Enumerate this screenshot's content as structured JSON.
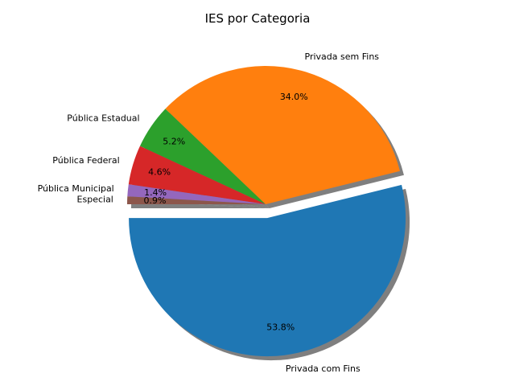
{
  "chart_data": {
    "type": "pie",
    "title": "IES por Categoria",
    "start_angle_deg": 180,
    "direction": "counterclockwise",
    "shadow": true,
    "exploded": [
      "Privada com Fins"
    ],
    "slices": [
      {
        "label": "Privada com Fins",
        "value": 53.8,
        "pct_label": "53.8%",
        "color": "#1f77b4"
      },
      {
        "label": "Privada sem Fins",
        "value": 34.0,
        "pct_label": "34.0%",
        "color": "#ff7f0e"
      },
      {
        "label": "Pública Estadual",
        "value": 5.2,
        "pct_label": "5.2%",
        "color": "#2ca02c"
      },
      {
        "label": "Pública Federal",
        "value": 4.6,
        "pct_label": "4.6%",
        "color": "#d62728"
      },
      {
        "label": "Pública Municipal",
        "value": 1.4,
        "pct_label": "1.4%",
        "color": "#9467bd"
      },
      {
        "label": "Especial",
        "value": 0.9,
        "pct_label": "0.9%",
        "color": "#8c564b"
      }
    ]
  }
}
